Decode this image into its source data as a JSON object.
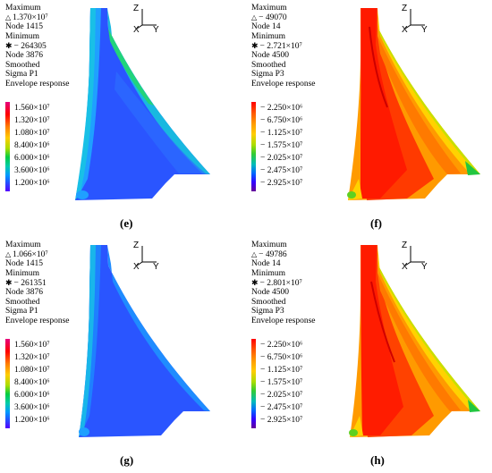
{
  "colors": {
    "p1_scale": [
      "#e6007e",
      "#ff0000",
      "#ff7f00",
      "#ffcc00",
      "#aadd00",
      "#00cc44",
      "#00ccaa",
      "#0099ff",
      "#2255ff",
      "#5500ff"
    ],
    "p3_scale": [
      "#ff0000",
      "#ff5500",
      "#ff9900",
      "#ffcc00",
      "#aadd00",
      "#33cc33",
      "#00bbbb",
      "#0066ff",
      "#3300ff",
      "#660099"
    ]
  },
  "panels": [
    {
      "id": "e",
      "caption": "(e)",
      "max_label": "Maximum",
      "max_value": "1.370×10⁷",
      "max_node": "Node 1415",
      "min_label": "Minimum",
      "min_value": "− 264305",
      "min_node": "Node 3876",
      "smoothed": "Smoothed",
      "quantity": "Sigma P1",
      "response": "Envelope response",
      "legend": [
        "1.560×10⁷",
        "1.320×10⁷",
        "1.080×10⁷",
        "8.400×10⁶",
        "6.000×10⁶",
        "3.600×10⁶",
        "1.200×10⁶"
      ],
      "axis_z": "Z",
      "axis_x": "X",
      "axis_y": "Y"
    },
    {
      "id": "f",
      "caption": "(f)",
      "max_label": "Maximum",
      "max_value": "− 49070",
      "max_node": "Node 14",
      "min_label": "Minimum",
      "min_value": "− 2.721×10⁷",
      "min_node": "Node 4500",
      "smoothed": "Smoothed",
      "quantity": "Sigma P3",
      "response": "Envelope response",
      "legend": [
        "− 2.250×10⁶",
        "− 6.750×10⁶",
        "− 1.125×10⁷",
        "− 1.575×10⁷",
        "− 2.025×10⁷",
        "− 2.475×10⁷",
        "− 2.925×10⁷"
      ],
      "axis_z": "Z",
      "axis_x": "X",
      "axis_y": "Y"
    },
    {
      "id": "g",
      "caption": "(g)",
      "max_label": "Maximum",
      "max_value": "1.066×10⁷",
      "max_node": "Node 1415",
      "min_label": "Minimum",
      "min_value": "− 261351",
      "min_node": "Node 3876",
      "smoothed": "Smoothed",
      "quantity": "Sigma P1",
      "response": "Envelope response",
      "legend": [
        "1.560×10⁷",
        "1.320×10⁷",
        "1.080×10⁷",
        "8.400×10⁶",
        "6.000×10⁶",
        "3.600×10⁶",
        "1.200×10⁶"
      ],
      "axis_z": "Z",
      "axis_x": "X",
      "axis_y": "Y"
    },
    {
      "id": "h",
      "caption": "(h)",
      "max_label": "Maximum",
      "max_value": "− 49786",
      "max_node": "Node 14",
      "min_label": "Minimum",
      "min_value": "− 2.801×10⁷",
      "min_node": "Node 4500",
      "smoothed": "Smoothed",
      "quantity": "Sigma P3",
      "response": "Envelope response",
      "legend": [
        "− 2.250×10⁶",
        "− 6.750×10⁶",
        "− 1.125×10⁷",
        "− 1.575×10⁷",
        "− 2.025×10⁷",
        "− 2.475×10⁷",
        "− 2.925×10⁷"
      ],
      "axis_z": "Z",
      "axis_x": "X",
      "axis_y": "Y"
    }
  ]
}
